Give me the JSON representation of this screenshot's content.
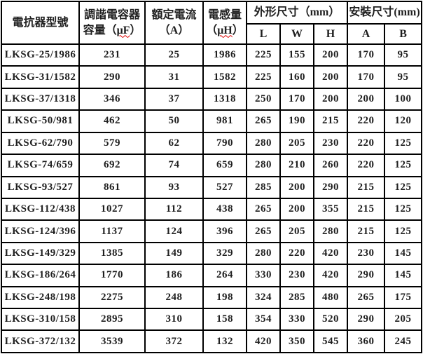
{
  "table": {
    "header": {
      "model": "電抗器型號",
      "capacity": {
        "line1": "調諧電容器",
        "line2_open": "容量（",
        "unit": "μF",
        "line2_close": "）"
      },
      "current": {
        "line1": "額定電流",
        "line2": "（A）"
      },
      "inductance": {
        "line1": "電感量",
        "line2_open": "（",
        "unit": "μH",
        "line2_close": "）"
      },
      "outer_dims": "外形尺寸（mm）",
      "mount_dims": "安裝尺寸(mm)",
      "sub_columns": [
        "L",
        "W",
        "H",
        "A",
        "B"
      ]
    },
    "accent_colors": {
      "spellcheck_underline": "#e00000",
      "grid_border": "#000000",
      "text": "#1f1f1f"
    },
    "rows": [
      [
        "LKSG-25/1986",
        "231",
        "25",
        "1986",
        "225",
        "155",
        "200",
        "170",
        "95"
      ],
      [
        "LKSG-31/1582",
        "290",
        "31",
        "1582",
        "225",
        "160",
        "200",
        "170",
        "95"
      ],
      [
        "LKSG-37/1318",
        "346",
        "37",
        "1318",
        "250",
        "170",
        "200",
        "200",
        "100"
      ],
      [
        "LKSG-50/981",
        "462",
        "50",
        "981",
        "265",
        "190",
        "215",
        "220",
        "120"
      ],
      [
        "LKSG-62/790",
        "579",
        "62",
        "790",
        "280",
        "205",
        "230",
        "220",
        "125"
      ],
      [
        "LKSG-74/659",
        "692",
        "74",
        "659",
        "280",
        "210",
        "260",
        "220",
        "125"
      ],
      [
        "LKSG-93/527",
        "861",
        "93",
        "527",
        "285",
        "200",
        "290",
        "215",
        "125"
      ],
      [
        "LKSG-112/438",
        "1027",
        "112",
        "438",
        "265",
        "200",
        "355",
        "215",
        "125"
      ],
      [
        "LKSG-124/396",
        "1137",
        "124",
        "396",
        "265",
        "205",
        "280",
        "215",
        "125"
      ],
      [
        "LKSG-149/329",
        "1385",
        "149",
        "329",
        "280",
        "220",
        "420",
        "230",
        "145"
      ],
      [
        "LKSG-186/264",
        "1770",
        "186",
        "264",
        "330",
        "230",
        "420",
        "290",
        "145"
      ],
      [
        "LKSG-248/198",
        "2275",
        "248",
        "198",
        "324",
        "285",
        "480",
        "265",
        "175"
      ],
      [
        "LKSG-310/158",
        "2895",
        "310",
        "158",
        "354",
        "330",
        "520",
        "290",
        "205"
      ],
      [
        "LKSG-372/132",
        "3539",
        "372",
        "132",
        "420",
        "350",
        "545",
        "360",
        "245"
      ]
    ]
  }
}
